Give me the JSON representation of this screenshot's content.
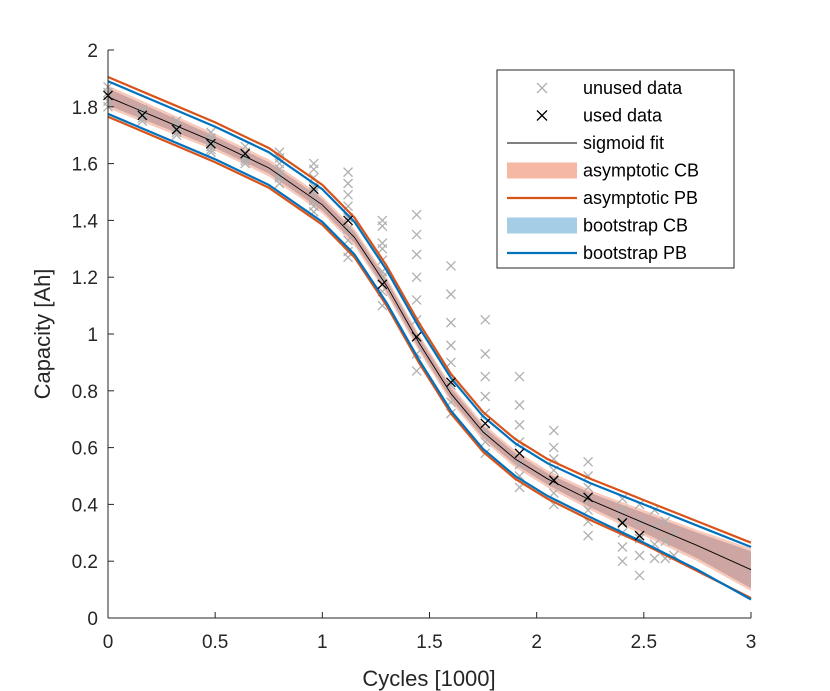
{
  "chart_data": {
    "type": "scatter",
    "title": "",
    "xlabel": "Cycles [1000]",
    "ylabel": "Capacity [Ah]",
    "xlim": [
      0,
      3
    ],
    "ylim": [
      0,
      2
    ],
    "xticks": [
      0,
      0.5,
      1,
      1.5,
      2,
      2.5,
      3
    ],
    "xtick_labels": [
      "0",
      "0.5",
      "1",
      "1.5",
      "2",
      "2.5",
      "3"
    ],
    "yticks": [
      0,
      0.2,
      0.4,
      0.6,
      0.8,
      1,
      1.2,
      1.4,
      1.6,
      1.8,
      2
    ],
    "ytick_labels": [
      "0",
      "0.2",
      "0.4",
      "0.6",
      "0.8",
      "1",
      "1.2",
      "1.4",
      "1.6",
      "1.8",
      "2"
    ],
    "grid": false,
    "legend_position": "top-right",
    "series": [
      {
        "name": "unused data",
        "kind": "marker-x",
        "color": "#b0b0b0",
        "x": [
          0,
          0,
          0,
          0,
          0.16,
          0.16,
          0.16,
          0.16,
          0.32,
          0.32,
          0.32,
          0.32,
          0.32,
          0.48,
          0.48,
          0.48,
          0.48,
          0.48,
          0.48,
          0.64,
          0.64,
          0.64,
          0.64,
          0.64,
          0.8,
          0.8,
          0.8,
          0.8,
          0.8,
          0.8,
          0.8,
          0.96,
          0.96,
          0.96,
          0.96,
          0.96,
          0.96,
          0.96,
          0.96,
          1.12,
          1.12,
          1.12,
          1.12,
          1.12,
          1.12,
          1.12,
          1.12,
          1.12,
          1.28,
          1.28,
          1.28,
          1.28,
          1.28,
          1.28,
          1.28,
          1.28,
          1.28,
          1.44,
          1.44,
          1.44,
          1.44,
          1.44,
          1.44,
          1.44,
          1.44,
          1.44,
          1.6,
          1.6,
          1.6,
          1.6,
          1.6,
          1.6,
          1.6,
          1.6,
          1.76,
          1.76,
          1.76,
          1.76,
          1.76,
          1.76,
          1.76,
          1.76,
          1.92,
          1.92,
          1.92,
          1.92,
          1.92,
          1.92,
          1.92,
          1.92,
          2.08,
          2.08,
          2.08,
          2.08,
          2.08,
          2.08,
          2.08,
          2.24,
          2.24,
          2.24,
          2.24,
          2.24,
          2.24,
          2.24,
          2.4,
          2.4,
          2.4,
          2.4,
          2.4,
          2.4,
          2.48,
          2.48,
          2.48,
          2.48,
          2.48,
          2.55,
          2.55,
          2.55,
          2.55,
          2.6,
          2.6,
          2.6,
          2.64,
          2.64
        ],
        "y": [
          1.87,
          1.85,
          1.82,
          1.8,
          1.79,
          1.78,
          1.76,
          1.75,
          1.75,
          1.73,
          1.72,
          1.71,
          1.7,
          1.71,
          1.69,
          1.68,
          1.66,
          1.65,
          1.64,
          1.66,
          1.64,
          1.62,
          1.61,
          1.6,
          1.64,
          1.62,
          1.6,
          1.58,
          1.56,
          1.55,
          1.53,
          1.6,
          1.58,
          1.55,
          1.52,
          1.5,
          1.47,
          1.45,
          1.43,
          1.57,
          1.53,
          1.49,
          1.45,
          1.41,
          1.37,
          1.33,
          1.29,
          1.27,
          1.38,
          1.32,
          1.26,
          1.2,
          1.15,
          1.1,
          1.4,
          1.3,
          1.22,
          1.42,
          1.35,
          1.28,
          1.2,
          1.12,
          1.05,
          0.99,
          0.93,
          0.87,
          1.24,
          1.14,
          1.04,
          0.96,
          0.9,
          0.82,
          0.76,
          0.72,
          1.05,
          0.93,
          0.85,
          0.78,
          0.72,
          0.66,
          0.62,
          0.58,
          0.85,
          0.75,
          0.68,
          0.62,
          0.58,
          0.54,
          0.5,
          0.46,
          0.66,
          0.6,
          0.56,
          0.52,
          0.48,
          0.44,
          0.4,
          0.55,
          0.5,
          0.46,
          0.42,
          0.38,
          0.34,
          0.29,
          0.42,
          0.38,
          0.34,
          0.3,
          0.25,
          0.2,
          0.4,
          0.34,
          0.28,
          0.22,
          0.15,
          0.38,
          0.32,
          0.26,
          0.21,
          0.34,
          0.27,
          0.21,
          0.3,
          0.22
        ]
      },
      {
        "name": "used data",
        "kind": "marker-x",
        "color": "#000000",
        "x": [
          0,
          0.16,
          0.32,
          0.48,
          0.64,
          0.96,
          1.12,
          1.28,
          1.44,
          1.6,
          1.76,
          1.92,
          2.08,
          2.24,
          2.4,
          2.48
        ],
        "y": [
          1.84,
          1.77,
          1.72,
          1.67,
          1.635,
          1.51,
          1.4,
          1.175,
          0.99,
          0.83,
          0.685,
          0.58,
          0.485,
          0.425,
          0.335,
          0.29
        ]
      },
      {
        "name": "sigmoid fit",
        "kind": "line",
        "color": "#000000",
        "x": [
          0,
          0.25,
          0.5,
          0.75,
          1.0,
          1.15,
          1.3,
          1.45,
          1.6,
          1.75,
          1.9,
          2.05,
          2.25,
          2.5,
          2.75,
          3.0
        ],
        "y": [
          1.835,
          1.755,
          1.675,
          1.585,
          1.455,
          1.34,
          1.17,
          0.97,
          0.79,
          0.655,
          0.56,
          0.49,
          0.415,
          0.335,
          0.255,
          0.17
        ]
      },
      {
        "name": "asymptotic CB",
        "kind": "band",
        "color": "#f4b8a5",
        "x": [
          0,
          0.25,
          0.5,
          0.75,
          1.0,
          1.15,
          1.3,
          1.45,
          1.6,
          1.75,
          1.9,
          2.05,
          2.25,
          2.5,
          2.75,
          3.0
        ],
        "upper": [
          1.875,
          1.79,
          1.705,
          1.615,
          1.485,
          1.37,
          1.2,
          1.0,
          0.82,
          0.685,
          0.59,
          0.52,
          0.45,
          0.38,
          0.31,
          0.245
        ],
        "lower": [
          1.795,
          1.72,
          1.645,
          1.555,
          1.425,
          1.31,
          1.14,
          0.94,
          0.76,
          0.625,
          0.53,
          0.46,
          0.38,
          0.29,
          0.2,
          0.095
        ]
      },
      {
        "name": "asymptotic PB",
        "kind": "line-pair",
        "color": "#d95319",
        "x": [
          0,
          0.25,
          0.5,
          0.75,
          1.0,
          1.15,
          1.3,
          1.45,
          1.6,
          1.75,
          1.9,
          2.05,
          2.25,
          2.5,
          2.75,
          3.0
        ],
        "upper": [
          1.905,
          1.825,
          1.745,
          1.655,
          1.525,
          1.41,
          1.24,
          1.04,
          0.86,
          0.725,
          0.63,
          0.56,
          0.49,
          0.415,
          0.34,
          0.265
        ],
        "lower": [
          1.765,
          1.685,
          1.605,
          1.515,
          1.385,
          1.27,
          1.1,
          0.9,
          0.72,
          0.585,
          0.49,
          0.42,
          0.345,
          0.26,
          0.165,
          0.07
        ]
      },
      {
        "name": "bootstrap CB",
        "kind": "band",
        "color": "#a6cde6",
        "x": [
          0,
          0.25,
          0.5,
          0.75,
          1.0,
          1.15,
          1.3,
          1.45,
          1.6,
          1.75,
          1.9,
          2.05,
          2.25,
          2.5,
          2.75,
          3.0
        ],
        "upper": [
          1.865,
          1.78,
          1.695,
          1.605,
          1.475,
          1.36,
          1.19,
          0.99,
          0.81,
          0.675,
          0.58,
          0.51,
          0.44,
          0.37,
          0.3,
          0.235
        ],
        "lower": [
          1.805,
          1.73,
          1.655,
          1.565,
          1.435,
          1.32,
          1.15,
          0.95,
          0.77,
          0.635,
          0.54,
          0.47,
          0.39,
          0.3,
          0.21,
          0.105
        ]
      },
      {
        "name": "bootstrap PB",
        "kind": "line-pair",
        "color": "#0072bd",
        "x": [
          0,
          0.25,
          0.5,
          0.75,
          1.0,
          1.15,
          1.3,
          1.45,
          1.6,
          1.75,
          1.9,
          2.05,
          2.25,
          2.5,
          2.75,
          3.0
        ],
        "upper": [
          1.89,
          1.81,
          1.73,
          1.64,
          1.51,
          1.395,
          1.225,
          1.025,
          0.845,
          0.71,
          0.615,
          0.545,
          0.475,
          0.4,
          0.325,
          0.25
        ],
        "lower": [
          1.775,
          1.695,
          1.615,
          1.525,
          1.395,
          1.28,
          1.11,
          0.91,
          0.73,
          0.595,
          0.5,
          0.43,
          0.355,
          0.265,
          0.17,
          0.065
        ]
      }
    ]
  }
}
